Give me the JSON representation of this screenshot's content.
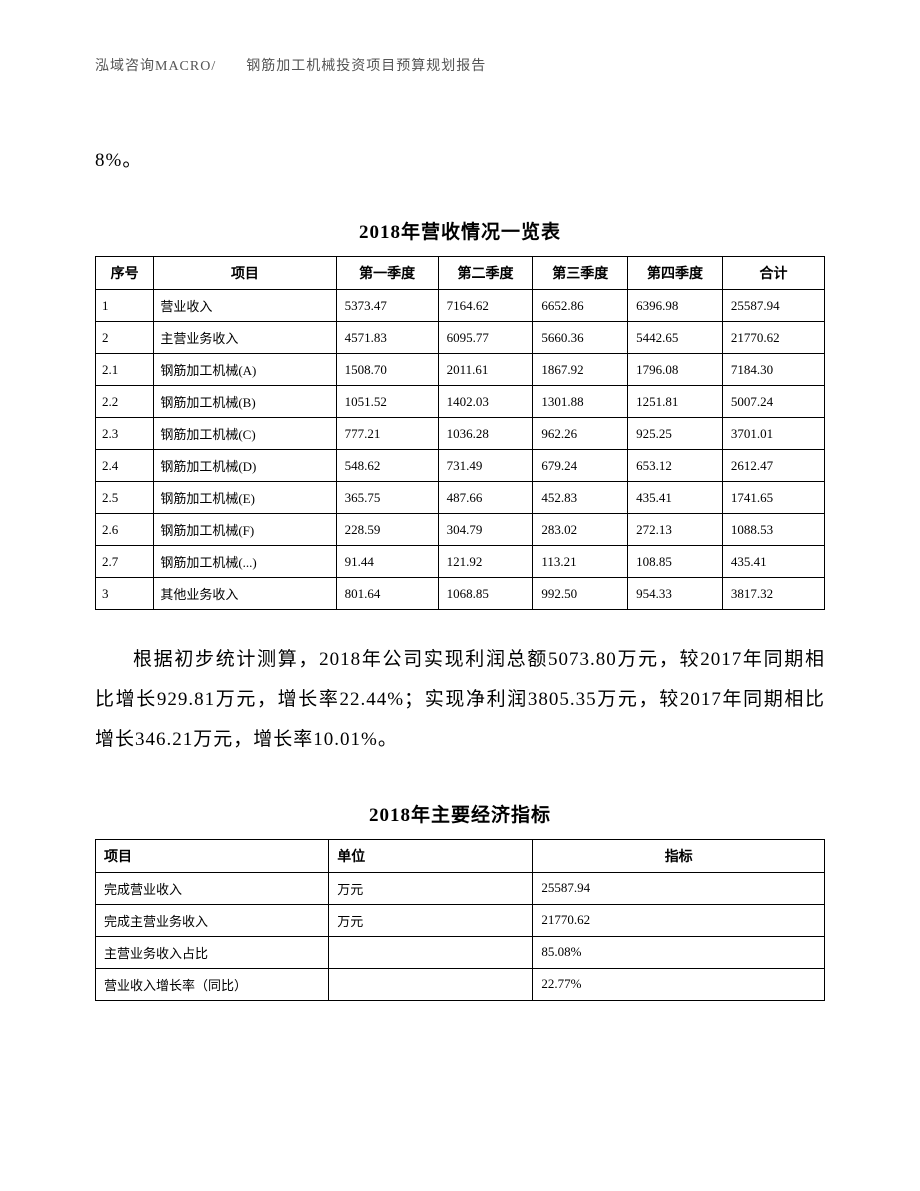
{
  "header": "泓域咨询MACRO/　　钢筋加工机械投资项目预算规划报告",
  "snippet": "8%。",
  "table1": {
    "title": "2018年营收情况一览表",
    "columns": [
      "序号",
      "项目",
      "第一季度",
      "第二季度",
      "第三季度",
      "第四季度",
      "合计"
    ],
    "rows": [
      [
        "1",
        "营业收入",
        "5373.47",
        "7164.62",
        "6652.86",
        "6396.98",
        "25587.94"
      ],
      [
        "2",
        "主营业务收入",
        "4571.83",
        "6095.77",
        "5660.36",
        "5442.65",
        "21770.62"
      ],
      [
        "2.1",
        "钢筋加工机械(A)",
        "1508.70",
        "2011.61",
        "1867.92",
        "1796.08",
        "7184.30"
      ],
      [
        "2.2",
        "钢筋加工机械(B)",
        "1051.52",
        "1402.03",
        "1301.88",
        "1251.81",
        "5007.24"
      ],
      [
        "2.3",
        "钢筋加工机械(C)",
        "777.21",
        "1036.28",
        "962.26",
        "925.25",
        "3701.01"
      ],
      [
        "2.4",
        "钢筋加工机械(D)",
        "548.62",
        "731.49",
        "679.24",
        "653.12",
        "2612.47"
      ],
      [
        "2.5",
        "钢筋加工机械(E)",
        "365.75",
        "487.66",
        "452.83",
        "435.41",
        "1741.65"
      ],
      [
        "2.6",
        "钢筋加工机械(F)",
        "228.59",
        "304.79",
        "283.02",
        "272.13",
        "1088.53"
      ],
      [
        "2.7",
        "钢筋加工机械(...)",
        "91.44",
        "121.92",
        "113.21",
        "108.85",
        "435.41"
      ],
      [
        "3",
        "其他业务收入",
        "801.64",
        "1068.85",
        "992.50",
        "954.33",
        "3817.32"
      ]
    ]
  },
  "paragraph": "根据初步统计测算，2018年公司实现利润总额5073.80万元，较2017年同期相比增长929.81万元，增长率22.44%；实现净利润3805.35万元，较2017年同期相比增长346.21万元，增长率10.01%。",
  "table2": {
    "title": "2018年主要经济指标",
    "columns": [
      "项目",
      "单位",
      "指标"
    ],
    "rows": [
      [
        "完成营业收入",
        "万元",
        "25587.94"
      ],
      [
        "完成主营业务收入",
        "万元",
        "21770.62"
      ],
      [
        "主营业务收入占比",
        "",
        "85.08%"
      ],
      [
        "营业收入增长率（同比）",
        "",
        "22.77%"
      ]
    ]
  }
}
